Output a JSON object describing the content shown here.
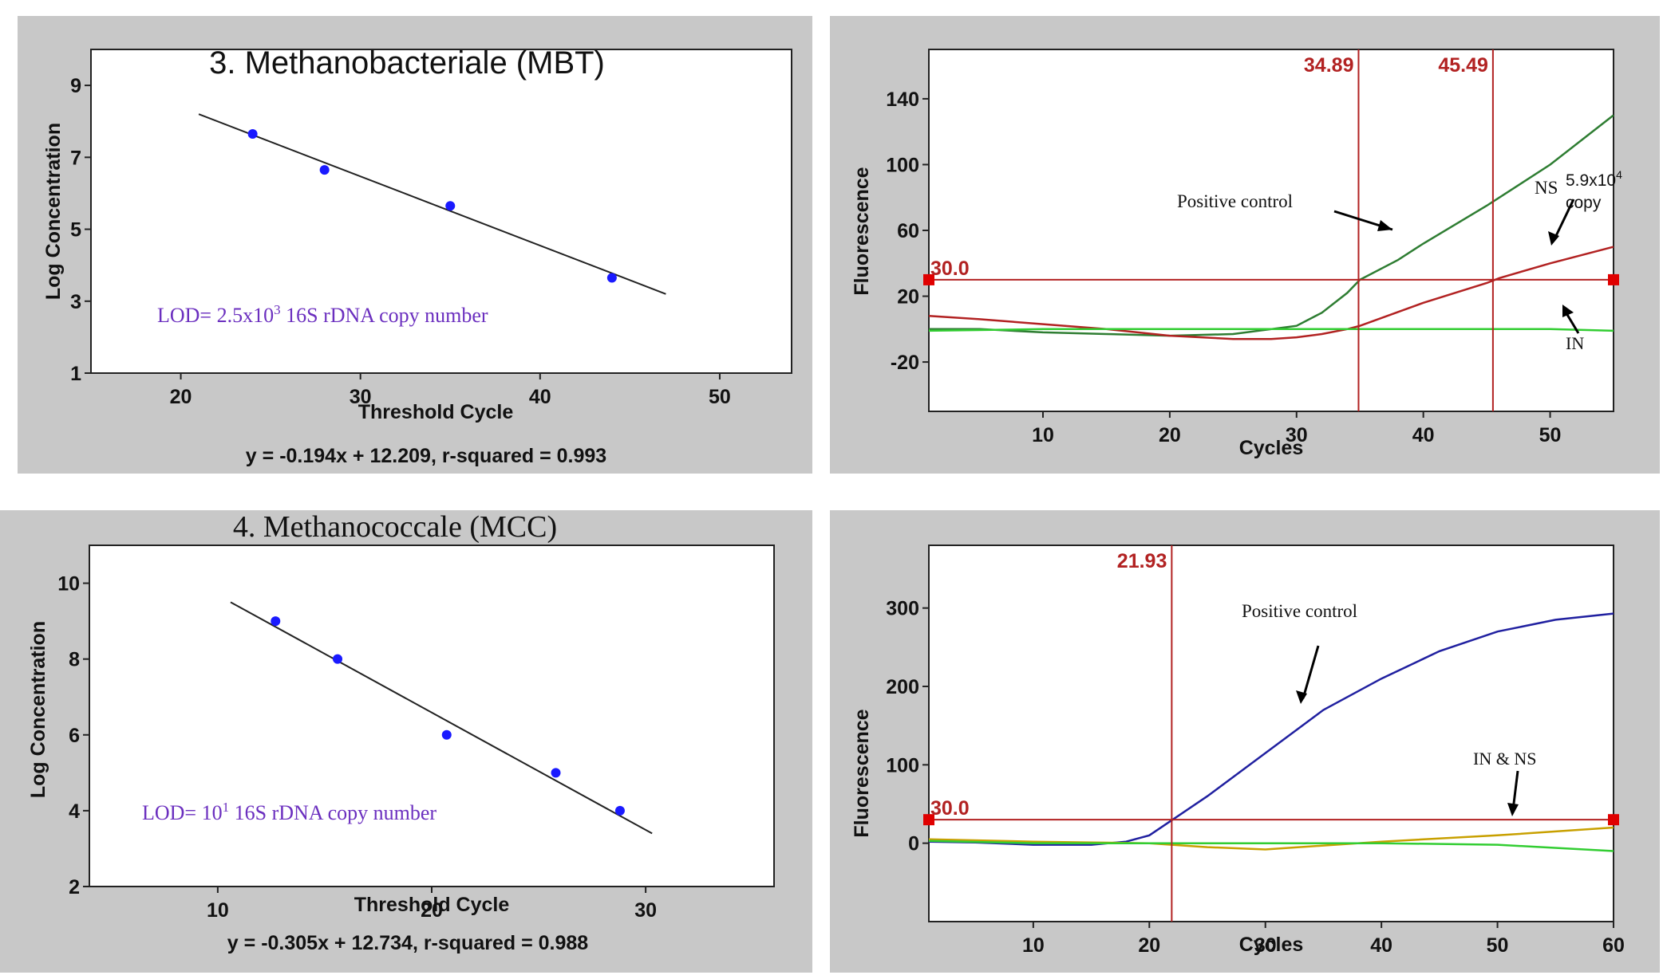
{
  "chart_data": [
    {
      "type": "scatter",
      "panel": "top-left",
      "title": "3. Methanobacteriale (MBT)",
      "xlabel": "Threshold Cycle",
      "ylabel": "Log Concentration",
      "xlim": [
        15,
        54
      ],
      "ylim": [
        1,
        10
      ],
      "xticks": [
        "20",
        "30",
        "40",
        "50"
      ],
      "yticks": [
        "1",
        "3",
        "5",
        "7",
        "9"
      ],
      "points": [
        {
          "x": 24,
          "y": 7.65
        },
        {
          "x": 28,
          "y": 6.65
        },
        {
          "x": 35,
          "y": 5.65
        },
        {
          "x": 44,
          "y": 3.65
        }
      ],
      "fit_line": {
        "x1": 21,
        "y1": 8.2,
        "x2": 47,
        "y2": 3.2
      },
      "equation": "y = -0.194x + 12.209, r-squared = 0.993",
      "annotation": {
        "prefix": "LOD= 2.5x10",
        "sup": "3",
        "suffix": " 16S rDNA  copy number"
      },
      "colors": {
        "points": "#1a1aff",
        "line": "#222222",
        "annotation": "#6b2fbf",
        "background": "#c8c8c8"
      }
    },
    {
      "type": "line",
      "panel": "top-right",
      "xlabel": "Cycles",
      "ylabel": "Fluorescence",
      "xlim": [
        1,
        55
      ],
      "ylim": [
        -50,
        170
      ],
      "xticks": [
        "10",
        "20",
        "30",
        "40",
        "50"
      ],
      "yticks": [
        "140",
        "100",
        "60",
        "20",
        "-20"
      ],
      "threshold": {
        "value": 30,
        "label": "30.0"
      },
      "vlines": [
        {
          "x": 34.89,
          "label": "34.89"
        },
        {
          "x": 45.49,
          "label": "45.49"
        }
      ],
      "series": [
        {
          "color": "#2e7d32",
          "points": [
            [
              1,
              0
            ],
            [
              5,
              0
            ],
            [
              10,
              -2
            ],
            [
              15,
              -3
            ],
            [
              20,
              -4
            ],
            [
              25,
              -3
            ],
            [
              30,
              2
            ],
            [
              32,
              10
            ],
            [
              34,
              22
            ],
            [
              35,
              30
            ],
            [
              38,
              42
            ],
            [
              40,
              52
            ],
            [
              45,
              75
            ],
            [
              50,
              100
            ],
            [
              55,
              130
            ]
          ]
        },
        {
          "color": "#b22222",
          "points": [
            [
              1,
              8
            ],
            [
              5,
              6
            ],
            [
              10,
              3
            ],
            [
              15,
              0
            ],
            [
              20,
              -4
            ],
            [
              25,
              -6
            ],
            [
              28,
              -6
            ],
            [
              30,
              -5
            ],
            [
              32,
              -3
            ],
            [
              34,
              0
            ],
            [
              35,
              2
            ],
            [
              40,
              16
            ],
            [
              45,
              28
            ],
            [
              46,
              31
            ],
            [
              50,
              40
            ],
            [
              55,
              50
            ]
          ]
        },
        {
          "color": "#32cd32",
          "points": [
            [
              1,
              -1
            ],
            [
              10,
              0
            ],
            [
              20,
              0
            ],
            [
              30,
              0
            ],
            [
              40,
              0
            ],
            [
              50,
              0
            ],
            [
              55,
              -1
            ]
          ]
        }
      ],
      "annotations": [
        {
          "text": "Positive control"
        },
        {
          "text": "NS"
        },
        {
          "text": "5.9x10",
          "sup": "4"
        },
        {
          "text": "copy"
        },
        {
          "text": "IN"
        }
      ],
      "colors": {
        "threshold": "#b22222",
        "background": "#c8c8c8"
      }
    },
    {
      "type": "scatter",
      "panel": "bottom-left",
      "title": "4. Methanococcale  (MCC)",
      "xlabel": "Threshold Cycle",
      "ylabel": "Log Concentration",
      "xlim": [
        4,
        36
      ],
      "ylim": [
        2,
        11
      ],
      "xticks": [
        "10",
        "20",
        "30"
      ],
      "yticks": [
        "2",
        "4",
        "6",
        "8",
        "10"
      ],
      "points": [
        {
          "x": 12.7,
          "y": 9.0
        },
        {
          "x": 15.6,
          "y": 8.0
        },
        {
          "x": 20.7,
          "y": 6.0
        },
        {
          "x": 25.8,
          "y": 5.0
        },
        {
          "x": 28.8,
          "y": 4.0
        }
      ],
      "fit_line": {
        "x1": 10.6,
        "y1": 9.5,
        "x2": 30.3,
        "y2": 3.4
      },
      "equation": "y = -0.305x + 12.734, r-squared = 0.988",
      "annotation": {
        "prefix": "LOD= 10",
        "sup": "1",
        "suffix": " 16S rDNA  copy number"
      },
      "colors": {
        "points": "#1a1aff",
        "line": "#222222",
        "annotation": "#6b2fbf",
        "background": "#c8c8c8"
      }
    },
    {
      "type": "line",
      "panel": "bottom-right",
      "xlabel": "Cycles",
      "ylabel": "Fluorescence",
      "xlim": [
        1,
        60
      ],
      "ylim": [
        -100,
        380
      ],
      "xticks": [
        "10",
        "20",
        "30",
        "40",
        "50",
        "60"
      ],
      "yticks": [
        "300",
        "200",
        "100",
        "0"
      ],
      "threshold": {
        "value": 30,
        "label": "30.0"
      },
      "vlines": [
        {
          "x": 21.93,
          "label": "21.93"
        }
      ],
      "series": [
        {
          "color": "#2020a0",
          "points": [
            [
              1,
              2
            ],
            [
              5,
              1
            ],
            [
              10,
              -2
            ],
            [
              15,
              -2
            ],
            [
              18,
              2
            ],
            [
              20,
              10
            ],
            [
              22,
              30
            ],
            [
              25,
              60
            ],
            [
              30,
              115
            ],
            [
              35,
              170
            ],
            [
              40,
              210
            ],
            [
              45,
              245
            ],
            [
              50,
              270
            ],
            [
              55,
              285
            ],
            [
              60,
              293
            ]
          ]
        },
        {
          "color": "#c8a000",
          "points": [
            [
              1,
              5
            ],
            [
              10,
              2
            ],
            [
              20,
              0
            ],
            [
              25,
              -5
            ],
            [
              30,
              -8
            ],
            [
              35,
              -3
            ],
            [
              40,
              2
            ],
            [
              50,
              10
            ],
            [
              60,
              20
            ]
          ]
        },
        {
          "color": "#32cd32",
          "points": [
            [
              1,
              3
            ],
            [
              10,
              0
            ],
            [
              20,
              0
            ],
            [
              30,
              0
            ],
            [
              40,
              0
            ],
            [
              50,
              -2
            ],
            [
              60,
              -10
            ]
          ]
        }
      ],
      "annotations": [
        {
          "text": "Positive control"
        },
        {
          "text": "IN & NS"
        }
      ],
      "colors": {
        "threshold": "#b22222",
        "background": "#c8c8c8"
      }
    }
  ]
}
